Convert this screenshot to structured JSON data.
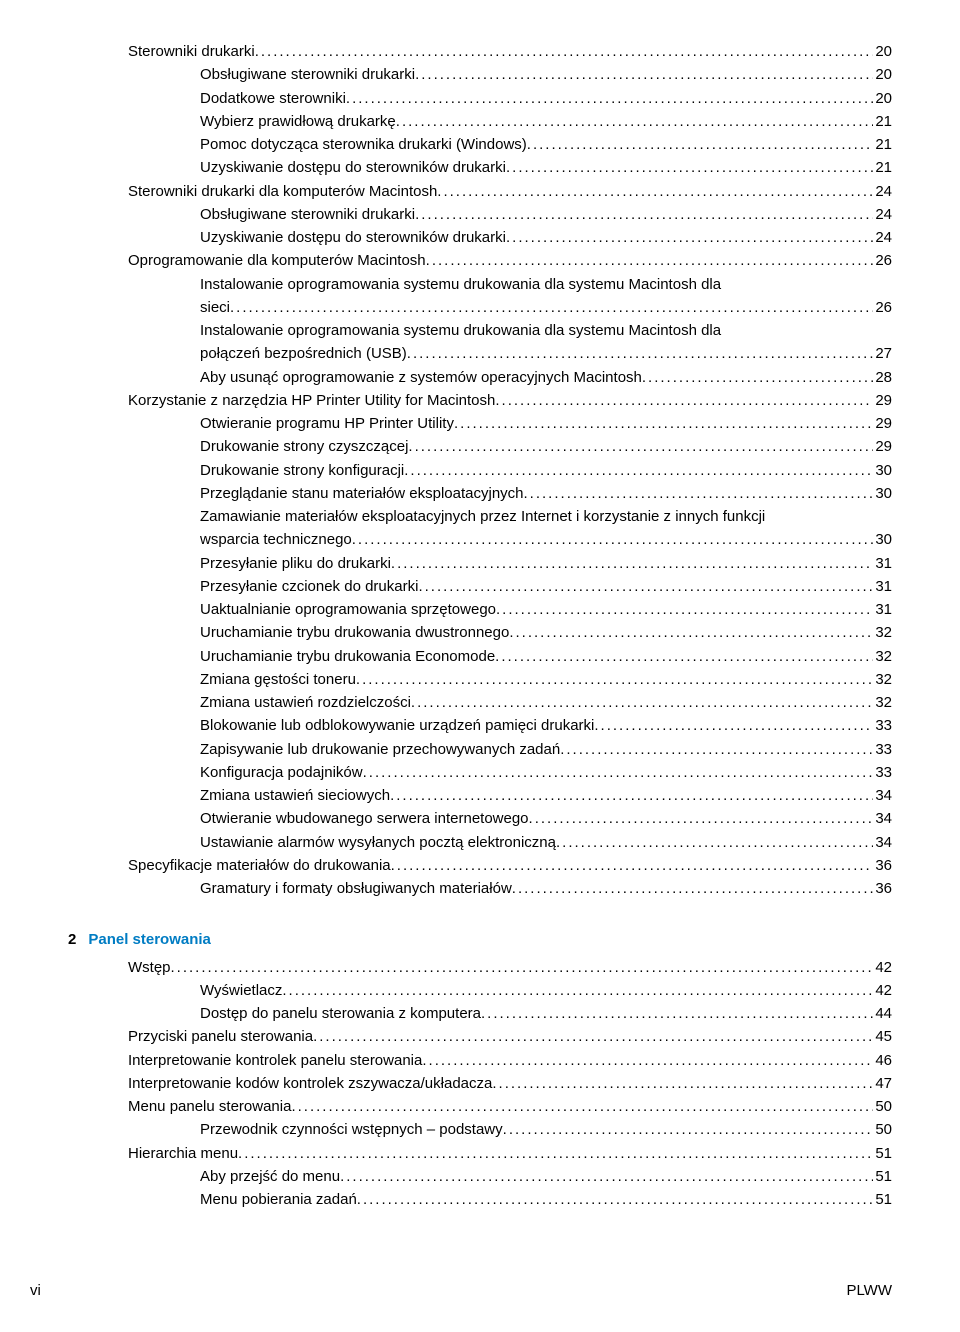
{
  "section1": [
    {
      "indent": 1,
      "label": "Sterowniki drukarki",
      "page": "20"
    },
    {
      "indent": 2,
      "label": "Obsługiwane sterowniki drukarki",
      "page": "20"
    },
    {
      "indent": 2,
      "label": "Dodatkowe sterowniki",
      "page": "20"
    },
    {
      "indent": 2,
      "label": "Wybierz prawidłową drukarkę",
      "page": "21"
    },
    {
      "indent": 2,
      "label": "Pomoc dotycząca sterownika drukarki (Windows)",
      "page": "21"
    },
    {
      "indent": 2,
      "label": "Uzyskiwanie dostępu do sterowników drukarki",
      "page": "21"
    },
    {
      "indent": 1,
      "label": "Sterowniki drukarki dla komputerów Macintosh",
      "page": "24"
    },
    {
      "indent": 2,
      "label": "Obsługiwane sterowniki drukarki",
      "page": "24"
    },
    {
      "indent": 2,
      "label": "Uzyskiwanie dostępu do sterowników drukarki",
      "page": "24"
    },
    {
      "indent": 1,
      "label": "Oprogramowanie dla komputerów Macintosh",
      "page": "26"
    },
    {
      "indent": 2,
      "wrap": true,
      "label1": "Instalowanie oprogramowania systemu drukowania dla systemu Macintosh dla",
      "label2": "sieci",
      "page": "26"
    },
    {
      "indent": 2,
      "wrap": true,
      "label1": "Instalowanie oprogramowania systemu drukowania dla systemu Macintosh dla",
      "label2": "połączeń bezpośrednich (USB)",
      "page": "27"
    },
    {
      "indent": 2,
      "label": "Aby usunąć oprogramowanie z systemów operacyjnych Macintosh",
      "page": "28"
    },
    {
      "indent": 1,
      "label": "Korzystanie z narzędzia HP Printer Utility for Macintosh",
      "page": "29"
    },
    {
      "indent": 2,
      "label": "Otwieranie programu HP Printer Utility",
      "page": "29"
    },
    {
      "indent": 2,
      "label": "Drukowanie strony czyszczącej",
      "page": "29"
    },
    {
      "indent": 2,
      "label": "Drukowanie strony konfiguracji",
      "page": "30"
    },
    {
      "indent": 2,
      "label": "Przeglądanie stanu materiałów eksploatacyjnych",
      "page": "30"
    },
    {
      "indent": 2,
      "wrap": true,
      "label1": "Zamawianie materiałów eksploatacyjnych przez Internet i korzystanie z innych funkcji",
      "label2": "wsparcia technicznego",
      "page": "30"
    },
    {
      "indent": 2,
      "label": "Przesyłanie pliku do drukarki",
      "page": "31"
    },
    {
      "indent": 2,
      "label": "Przesyłanie czcionek do drukarki",
      "page": "31"
    },
    {
      "indent": 2,
      "label": "Uaktualnianie oprogramowania sprzętowego",
      "page": "31"
    },
    {
      "indent": 2,
      "label": "Uruchamianie trybu drukowania dwustronnego",
      "page": "32"
    },
    {
      "indent": 2,
      "label": "Uruchamianie trybu drukowania Economode",
      "page": "32"
    },
    {
      "indent": 2,
      "label": "Zmiana gęstości toneru",
      "page": "32"
    },
    {
      "indent": 2,
      "label": "Zmiana ustawień rozdzielczości",
      "page": "32"
    },
    {
      "indent": 2,
      "label": "Blokowanie lub odblokowywanie urządzeń pamięci drukarki",
      "page": "33"
    },
    {
      "indent": 2,
      "label": "Zapisywanie lub drukowanie przechowywanych zadań",
      "page": "33"
    },
    {
      "indent": 2,
      "label": "Konfiguracja podajników",
      "page": "33"
    },
    {
      "indent": 2,
      "label": "Zmiana ustawień sieciowych",
      "page": "34"
    },
    {
      "indent": 2,
      "label": "Otwieranie wbudowanego serwera internetowego",
      "page": "34"
    },
    {
      "indent": 2,
      "label": "Ustawianie alarmów wysyłanych pocztą elektroniczną",
      "page": "34"
    },
    {
      "indent": 1,
      "label": "Specyfikacje materiałów do drukowania",
      "page": "36"
    },
    {
      "indent": 2,
      "label": "Gramatury i formaty obsługiwanych materiałów",
      "page": "36"
    }
  ],
  "chapter2": {
    "num": "2",
    "title": "Panel sterowania"
  },
  "section2": [
    {
      "indent": 1,
      "label": "Wstęp",
      "page": "42"
    },
    {
      "indent": 2,
      "label": "Wyświetlacz",
      "page": "42"
    },
    {
      "indent": 2,
      "label": "Dostęp do panelu sterowania z komputera",
      "page": "44"
    },
    {
      "indent": 1,
      "label": "Przyciski panelu sterowania",
      "page": "45"
    },
    {
      "indent": 1,
      "label": "Interpretowanie kontrolek panelu sterowania",
      "page": "46"
    },
    {
      "indent": 1,
      "label": "Interpretowanie kodów kontrolek zszywacza/układacza",
      "page": "47"
    },
    {
      "indent": 1,
      "label": "Menu panelu sterowania",
      "page": "50"
    },
    {
      "indent": 2,
      "label": "Przewodnik czynności wstępnych – podstawy",
      "page": "50"
    },
    {
      "indent": 1,
      "label": "Hierarchia menu",
      "page": "51"
    },
    {
      "indent": 2,
      "label": "Aby przejść do menu",
      "page": "51"
    },
    {
      "indent": 2,
      "label": "Menu pobierania zadań",
      "page": "51"
    }
  ],
  "footer": {
    "left": "vi",
    "right": "PLWW"
  },
  "colors": {
    "chapter_title": "#007cc3",
    "text": "#000000",
    "bg": "#ffffff"
  }
}
